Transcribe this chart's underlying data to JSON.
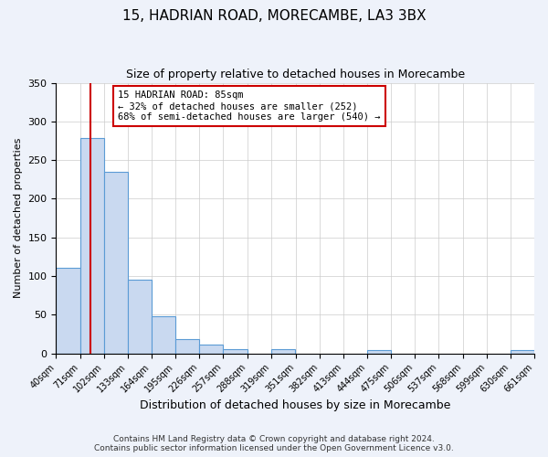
{
  "title": "15, HADRIAN ROAD, MORECAMBE, LA3 3BX",
  "subtitle": "Size of property relative to detached houses in Morecambe",
  "xlabel": "Distribution of detached houses by size in Morecambe",
  "ylabel": "Number of detached properties",
  "bin_edges": [
    40,
    71,
    102,
    133,
    164,
    195,
    226,
    257,
    288,
    319,
    351,
    382,
    413,
    444,
    475,
    506,
    537,
    568,
    599,
    630,
    661
  ],
  "bin_counts": [
    111,
    278,
    235,
    95,
    48,
    18,
    11,
    5,
    0,
    5,
    0,
    0,
    0,
    4,
    0,
    0,
    0,
    0,
    0,
    4
  ],
  "bar_color": "#c9d9f0",
  "bar_edge_color": "#5b9bd5",
  "property_size": 85,
  "red_line_color": "#cc0000",
  "annotation_title": "15 HADRIAN ROAD: 85sqm",
  "annotation_line1": "← 32% of detached houses are smaller (252)",
  "annotation_line2": "68% of semi-detached houses are larger (540) →",
  "annotation_box_edge": "#cc0000",
  "ylim": [
    0,
    350
  ],
  "yticks": [
    0,
    50,
    100,
    150,
    200,
    250,
    300,
    350
  ],
  "tick_labels": [
    "40sqm",
    "71sqm",
    "102sqm",
    "133sqm",
    "164sqm",
    "195sqm",
    "226sqm",
    "257sqm",
    "288sqm",
    "319sqm",
    "351sqm",
    "382sqm",
    "413sqm",
    "444sqm",
    "475sqm",
    "506sqm",
    "537sqm",
    "568sqm",
    "599sqm",
    "630sqm",
    "661sqm"
  ],
  "footer_line1": "Contains HM Land Registry data © Crown copyright and database right 2024.",
  "footer_line2": "Contains public sector information licensed under the Open Government Licence v3.0.",
  "bg_color": "#eef2fa",
  "plot_bg_color": "#ffffff"
}
